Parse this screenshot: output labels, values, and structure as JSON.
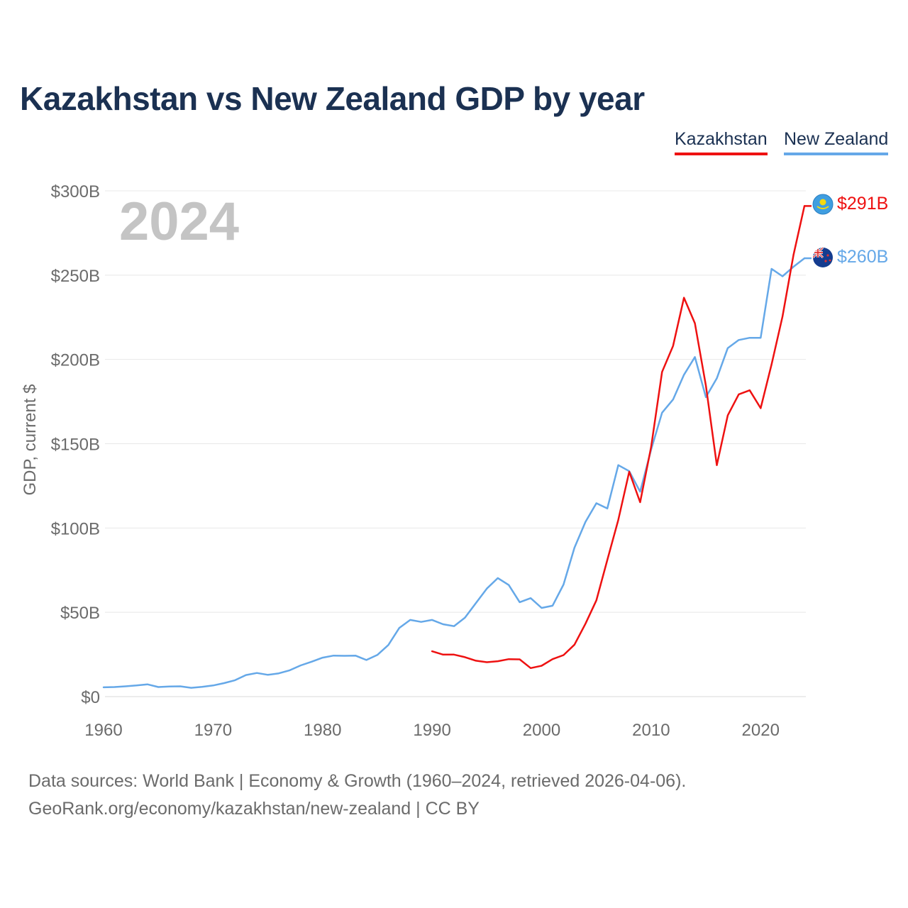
{
  "chart_data": {
    "type": "line",
    "title": "Kazakhstan vs New Zealand GDP by year",
    "xlabel": "",
    "ylabel": "GDP, current $",
    "year_watermark": "2024",
    "xlim": [
      1960,
      2024
    ],
    "ylim": [
      0,
      300
    ],
    "unit": "billions USD",
    "x_ticks": [
      1960,
      1970,
      1980,
      1990,
      2000,
      2010,
      2020
    ],
    "x_tick_labels": [
      "1960",
      "1970",
      "1980",
      "1990",
      "2000",
      "2010",
      "2020"
    ],
    "y_ticks": [
      0,
      50,
      100,
      150,
      200,
      250,
      300
    ],
    "y_tick_labels": [
      "$0",
      "$50B",
      "$100B",
      "$150B",
      "$200B",
      "$250B",
      "$300B"
    ],
    "legend_position": "top-right",
    "series": [
      {
        "name": "Kazakhstan",
        "color": "#ee1111",
        "icon": "kazakhstan-flag-icon",
        "end_label": "$291B",
        "x": [
          1990,
          1991,
          1992,
          1993,
          1994,
          1995,
          1996,
          1997,
          1998,
          1999,
          2000,
          2001,
          2002,
          2003,
          2004,
          2005,
          2006,
          2007,
          2008,
          2009,
          2010,
          2011,
          2012,
          2013,
          2014,
          2015,
          2016,
          2017,
          2018,
          2019,
          2020,
          2021,
          2022,
          2023,
          2024
        ],
        "values": [
          26.9,
          24.9,
          24.9,
          23.4,
          21.3,
          20.4,
          21.0,
          22.2,
          22.1,
          16.9,
          18.3,
          22.2,
          24.6,
          30.8,
          43.2,
          57.1,
          81.0,
          104.8,
          133.4,
          115.3,
          148.1,
          192.6,
          208.0,
          236.6,
          221.4,
          184.4,
          137.3,
          166.8,
          179.3,
          181.7,
          171.1,
          197.1,
          225.5,
          262.0,
          291.0
        ]
      },
      {
        "name": "New Zealand",
        "color": "#65a8e8",
        "icon": "new-zealand-flag-icon",
        "end_label": "$260B",
        "x": [
          1960,
          1961,
          1962,
          1963,
          1964,
          1965,
          1966,
          1967,
          1968,
          1969,
          1970,
          1971,
          1972,
          1973,
          1974,
          1975,
          1976,
          1977,
          1978,
          1979,
          1980,
          1981,
          1982,
          1983,
          1984,
          1985,
          1986,
          1987,
          1988,
          1989,
          1990,
          1991,
          1992,
          1993,
          1994,
          1995,
          1996,
          1997,
          1998,
          1999,
          2000,
          2001,
          2002,
          2003,
          2004,
          2005,
          2006,
          2007,
          2008,
          2009,
          2010,
          2011,
          2012,
          2013,
          2014,
          2015,
          2016,
          2017,
          2018,
          2019,
          2020,
          2021,
          2022,
          2023,
          2024
        ],
        "values": [
          5.5,
          5.7,
          6.1,
          6.6,
          7.3,
          5.7,
          6.0,
          6.1,
          5.2,
          5.8,
          6.6,
          8.0,
          9.7,
          12.8,
          14.0,
          12.9,
          13.8,
          15.6,
          18.5,
          20.7,
          23.1,
          24.3,
          24.2,
          24.3,
          21.7,
          24.7,
          30.6,
          40.7,
          45.5,
          44.3,
          45.5,
          42.9,
          41.8,
          46.8,
          55.5,
          64.1,
          70.3,
          66.2,
          56.0,
          58.4,
          52.6,
          53.9,
          66.5,
          88.3,
          103.6,
          114.7,
          111.6,
          137.3,
          133.7,
          121.5,
          146.5,
          168.4,
          176.2,
          190.9,
          201.4,
          177.6,
          188.8,
          206.7,
          211.5,
          212.8,
          212.8,
          253.7,
          249.3,
          255.0,
          260.0
        ]
      }
    ],
    "footer_line1": "Data sources: World Bank | Economy & Growth (1960–2024, retrieved 2026-04-06).",
    "footer_line2": "GeoRank.org/economy/kazakhstan/new-zealand | CC BY"
  }
}
